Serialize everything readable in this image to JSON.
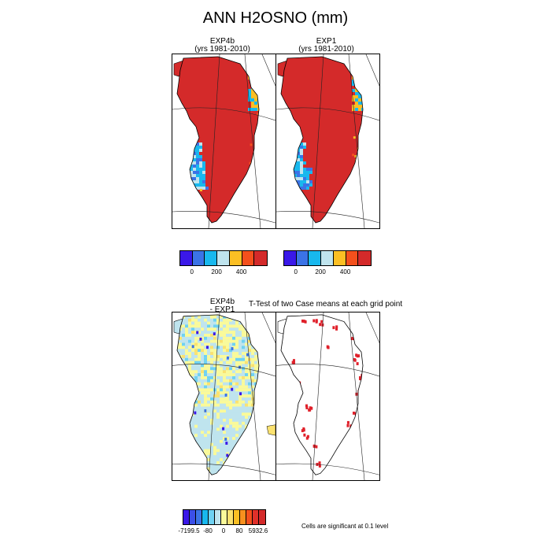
{
  "figure": {
    "title": "ANN H2OSNO (mm)",
    "ttest_label": "T-Test of two Case means at each grid point",
    "significance_note": "Cells are significant at 0.1 level"
  },
  "panels": [
    {
      "id": "exp4b",
      "line1": "EXP4b",
      "line2": "(yrs 1981-2010)"
    },
    {
      "id": "exp1",
      "line1": "EXP1",
      "line2": "(yrs 1981-2010)"
    },
    {
      "id": "diff",
      "line1": "EXP4b",
      "line2": "- EXP1"
    },
    {
      "id": "ttest",
      "line1": "",
      "line2": ""
    }
  ],
  "colorbars": {
    "main": {
      "colors": [
        "#3a18e8",
        "#3b73e6",
        "#18b8ee",
        "#bfe4ee",
        "#fbbf24",
        "#f4501c",
        "#d42a2a"
      ],
      "labels": [
        "0",
        "200",
        "400"
      ]
    },
    "diff": {
      "colors": [
        "#3a18e8",
        "#3b4fe8",
        "#3b73e6",
        "#18b8ee",
        "#6fd2f2",
        "#bfe4ee",
        "#fafa9a",
        "#fbe270",
        "#fbbf24",
        "#f8901e",
        "#f4501c",
        "#e0302a",
        "#d42a2a"
      ],
      "labels": [
        "-7199.5",
        "-80",
        "0",
        "80",
        "5932.6"
      ]
    }
  },
  "chart_data": [
    {
      "type": "heatmap",
      "title": "EXP4b",
      "subtitle": "(yrs 1981-2010)",
      "variable": "H2OSNO",
      "units": "mm",
      "legend_levels": [
        "0",
        "200",
        "400"
      ],
      "dominant_color": "#d42a2a"
    },
    {
      "type": "heatmap",
      "title": "EXP1",
      "subtitle": "(yrs 1981-2010)",
      "variable": "H2OSNO",
      "units": "mm",
      "legend_levels": [
        "0",
        "200",
        "400"
      ],
      "dominant_color": "#d42a2a"
    },
    {
      "type": "heatmap",
      "title": "EXP4b - EXP1",
      "variable": "H2OSNO difference",
      "units": "mm",
      "range": [
        -7199.5,
        5932.6
      ],
      "legend_levels": [
        "-7199.5",
        "-80",
        "0",
        "80",
        "5932.6"
      ]
    },
    {
      "type": "heatmap",
      "title": "T-Test of two Case means at each grid point",
      "note": "Cells are significant at 0.1 level",
      "significant_color": "#e0202a"
    }
  ]
}
